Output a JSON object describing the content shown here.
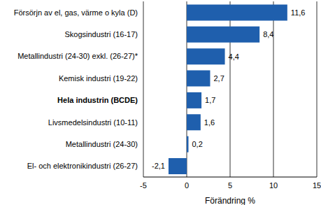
{
  "chart_data": {
    "type": "bar",
    "orientation": "horizontal",
    "categories": [
      "Försörjn av el, gas, värme o kyla (D)",
      "Skogsindustri (16-17)",
      "Metallindustri (24-30) exkl. (26-27)*",
      "Kemisk industri (19-22)",
      "Hela industrin (BCDE)",
      "Livsmedelsindustri (10-11)",
      "Metallindustri (24-30)",
      "El- och elektronikindustri (26-27)"
    ],
    "values": [
      11.6,
      8.4,
      4.4,
      2.7,
      1.7,
      1.6,
      0.2,
      -2.1
    ],
    "value_labels": [
      "11,6",
      "8,4",
      "4,4",
      "2,7",
      "1,7",
      "1,6",
      "0,2",
      "-2,1"
    ],
    "data_labels": true,
    "color": "#1f5fad",
    "xlabel": "Förändring %",
    "xlim": [
      -5,
      15
    ],
    "xticks": [
      -5,
      0,
      5,
      10,
      15
    ],
    "grid": true
  }
}
